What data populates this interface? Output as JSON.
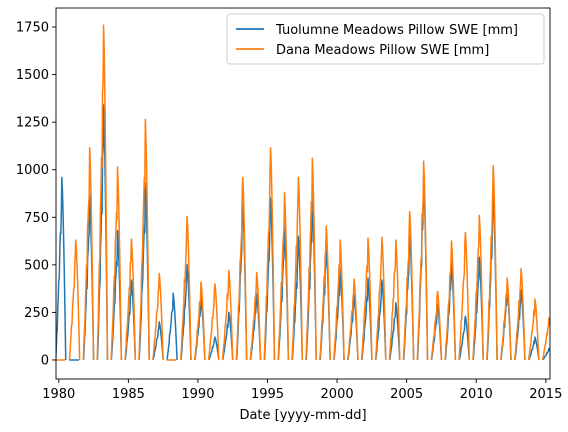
{
  "chart_data": {
    "type": "line",
    "xlabel": "Date [yyyy-mm-dd]",
    "ylabel": "",
    "xlim": [
      1979.8,
      2015.3
    ],
    "ylim": [
      -100,
      1850
    ],
    "xticks": [
      "1980",
      "1985",
      "1990",
      "1995",
      "2000",
      "2005",
      "2010",
      "2015"
    ],
    "yticks": [
      "0",
      "250",
      "500",
      "750",
      "1000",
      "1250",
      "1500",
      "1750"
    ],
    "grid": false,
    "legend_position": "top-right",
    "series": [
      {
        "name": "Tuolumne Meadows Pillow SWE [mm]",
        "color": "#1f77b4",
        "peaks": [
          {
            "year": 1980,
            "peak": 960
          },
          {
            "year": 1981,
            "peak": 0
          },
          {
            "year": 1982,
            "peak": 870
          },
          {
            "year": 1983,
            "peak": 1340
          },
          {
            "year": 1984,
            "peak": 680
          },
          {
            "year": 1985,
            "peak": 420
          },
          {
            "year": 1986,
            "peak": 930
          },
          {
            "year": 1987,
            "peak": 200
          },
          {
            "year": 1988,
            "peak": 350
          },
          {
            "year": 1989,
            "peak": 500
          },
          {
            "year": 1990,
            "peak": 330
          },
          {
            "year": 1991,
            "peak": 120
          },
          {
            "year": 1992,
            "peak": 250
          },
          {
            "year": 1993,
            "peak": 820
          },
          {
            "year": 1994,
            "peak": 350
          },
          {
            "year": 1995,
            "peak": 850
          },
          {
            "year": 1996,
            "peak": 700
          },
          {
            "year": 1997,
            "peak": 650
          },
          {
            "year": 1998,
            "peak": 850
          },
          {
            "year": 1999,
            "peak": 600
          },
          {
            "year": 2000,
            "peak": 480
          },
          {
            "year": 2001,
            "peak": 340
          },
          {
            "year": 2002,
            "peak": 430
          },
          {
            "year": 2003,
            "peak": 420
          },
          {
            "year": 2004,
            "peak": 300
          },
          {
            "year": 2005,
            "peak": 660
          },
          {
            "year": 2006,
            "peak": 960
          },
          {
            "year": 2007,
            "peak": 290
          },
          {
            "year": 2008,
            "peak": 510
          },
          {
            "year": 2009,
            "peak": 230
          },
          {
            "year": 2010,
            "peak": 540
          },
          {
            "year": 2011,
            "peak": 880
          },
          {
            "year": 2012,
            "peak": 380
          },
          {
            "year": 2013,
            "peak": 370
          },
          {
            "year": 2014,
            "peak": 120
          },
          {
            "year": 2015,
            "peak": 60
          }
        ]
      },
      {
        "name": "Dana Meadows Pillow SWE [mm]",
        "color": "#ff7f0e",
        "peaks": [
          {
            "year": 1980,
            "peak": 0
          },
          {
            "year": 1981,
            "peak": 630
          },
          {
            "year": 1982,
            "peak": 1115
          },
          {
            "year": 1983,
            "peak": 1760
          },
          {
            "year": 1984,
            "peak": 1015
          },
          {
            "year": 1985,
            "peak": 635
          },
          {
            "year": 1986,
            "peak": 1265
          },
          {
            "year": 1987,
            "peak": 455
          },
          {
            "year": 1988,
            "peak": 0
          },
          {
            "year": 1989,
            "peak": 755
          },
          {
            "year": 1990,
            "peak": 410
          },
          {
            "year": 1991,
            "peak": 400
          },
          {
            "year": 1992,
            "peak": 470
          },
          {
            "year": 1993,
            "peak": 960
          },
          {
            "year": 1994,
            "peak": 460
          },
          {
            "year": 1995,
            "peak": 1115
          },
          {
            "year": 1996,
            "peak": 880
          },
          {
            "year": 1997,
            "peak": 960
          },
          {
            "year": 1998,
            "peak": 1060
          },
          {
            "year": 1999,
            "peak": 705
          },
          {
            "year": 2000,
            "peak": 630
          },
          {
            "year": 2001,
            "peak": 425
          },
          {
            "year": 2002,
            "peak": 640
          },
          {
            "year": 2003,
            "peak": 645
          },
          {
            "year": 2004,
            "peak": 630
          },
          {
            "year": 2005,
            "peak": 780
          },
          {
            "year": 2006,
            "peak": 1045
          },
          {
            "year": 2007,
            "peak": 360
          },
          {
            "year": 2008,
            "peak": 625
          },
          {
            "year": 2009,
            "peak": 670
          },
          {
            "year": 2010,
            "peak": 760
          },
          {
            "year": 2011,
            "peak": 1020
          },
          {
            "year": 2012,
            "peak": 430
          },
          {
            "year": 2013,
            "peak": 480
          },
          {
            "year": 2014,
            "peak": 320
          },
          {
            "year": 2015,
            "peak": 220
          }
        ]
      }
    ]
  }
}
